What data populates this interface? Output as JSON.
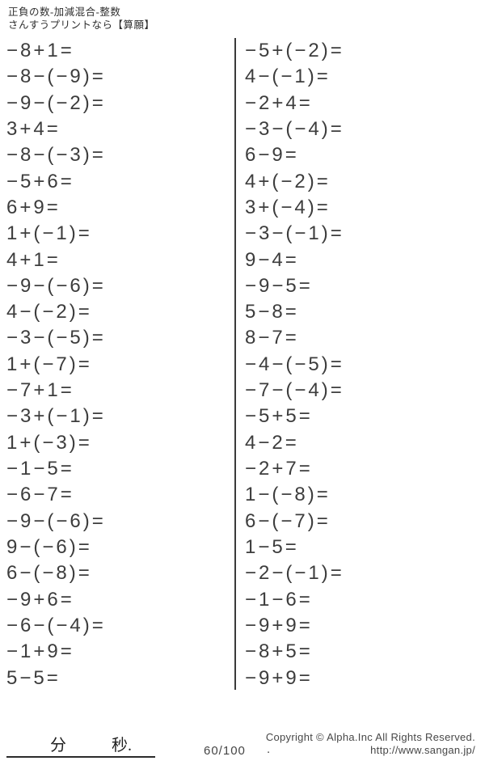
{
  "header": {
    "title": "正負の数-加減混合-整数",
    "subtitle": "さんすうプリントなら【算願】"
  },
  "problems": {
    "left": [
      "−8+1=",
      "−8−(−9)=",
      "−9−(−2)=",
      "3+4=",
      "−8−(−3)=",
      "−5+6=",
      "6+9=",
      "1+(−1)=",
      "4+1=",
      "−9−(−6)=",
      "4−(−2)=",
      "−3−(−5)=",
      "1+(−7)=",
      "−7+1=",
      "−3+(−1)=",
      "1+(−3)=",
      "−1−5=",
      "−6−7=",
      "−9−(−6)=",
      "9−(−6)=",
      "6−(−8)=",
      "−9+6=",
      "−6−(−4)=",
      "−1+9=",
      "5−5="
    ],
    "right": [
      "−5+(−2)=",
      "4−(−1)=",
      "−2+4=",
      "−3−(−4)=",
      "6−9=",
      "4+(−2)=",
      "3+(−4)=",
      "−3−(−1)=",
      "9−4=",
      "−9−5=",
      "5−8=",
      "8−7=",
      "−4−(−5)=",
      "−7−(−4)=",
      "−5+5=",
      "4−2=",
      "−2+7=",
      "1−(−8)=",
      "6−(−7)=",
      "1−5=",
      "−2−(−1)=",
      "−1−6=",
      "−9+9=",
      "−8+5=",
      "−9+9="
    ]
  },
  "footer": {
    "minutes_label": "分",
    "seconds_label": "秒.",
    "score": "60/100",
    "dot": ".",
    "copyright": "Copyright ©  Alpha.Inc All Rights Reserved.",
    "url": "http://www.sangan.jp/"
  },
  "colors": {
    "text": "#3d3d3d",
    "line": "#3a3a3a",
    "background": "#ffffff"
  }
}
